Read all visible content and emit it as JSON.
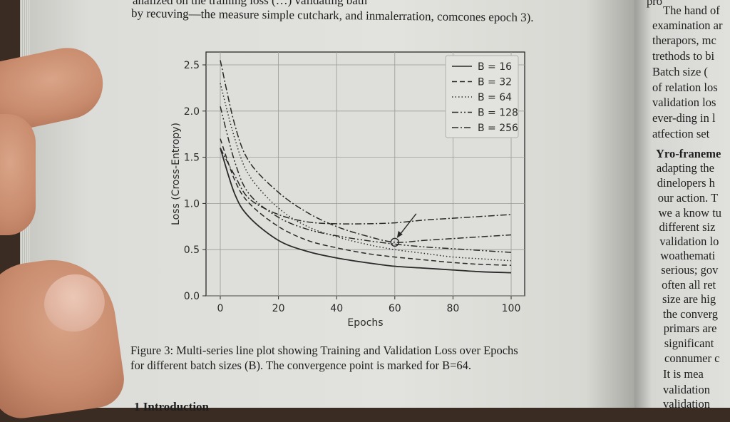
{
  "top_text": {
    "line1": "analized on the training loss (…) validating bath",
    "line2": "by recuving—the measure simple cutchark, and inmalerration, comcones epoch 3)."
  },
  "right_column": [
    "pro",
    "The hand of",
    "examination ar",
    "therapors, mc",
    "trethods to bi",
    "Batch size (",
    "of relation los",
    "validation los",
    "ever-ding in l",
    "atfection set",
    "Yro-franeme",
    "adapting the",
    "dinelopers h",
    "our action. T",
    "we a know tu",
    "different siz",
    "validation lo",
    "woathemati",
    "serious; gov",
    "often all ret",
    "size are hig",
    "the converg",
    "primars are",
    "significant",
    "connumer c",
    "It is mea",
    "validation",
    "validation"
  ],
  "caption": {
    "line1": "Figure 3: Multi-series line plot showing Training and Validation Loss over Epochs",
    "line2": "for different batch sizes (B). The convergence point is marked for B=64."
  },
  "section_heading": "1   Introduction",
  "chart_data": {
    "type": "line",
    "xlabel": "Epochs",
    "ylabel": "Loss (Cross-Entropy)",
    "xlim": [
      -4,
      104
    ],
    "ylim": [
      0,
      2.62
    ],
    "xticks": [
      "0",
      "20",
      "40",
      "60",
      "80",
      "100"
    ],
    "yticks": [
      "0.0",
      "0.5",
      "1.0",
      "1.5",
      "2.0",
      "2.5"
    ],
    "grid": true,
    "legend_position": "top-right",
    "x": [
      0,
      5,
      10,
      20,
      30,
      40,
      50,
      60,
      70,
      80,
      90,
      100
    ],
    "series": [
      {
        "name": "B = 16",
        "style": "solid",
        "values": [
          1.6,
          1.1,
          0.85,
          0.6,
          0.48,
          0.41,
          0.36,
          0.32,
          0.3,
          0.28,
          0.26,
          0.25
        ]
      },
      {
        "name": "B = 32",
        "style": "dashed",
        "values": [
          1.7,
          1.25,
          1.0,
          0.75,
          0.6,
          0.52,
          0.46,
          0.42,
          0.39,
          0.36,
          0.34,
          0.33
        ]
      },
      {
        "name": "B = 64",
        "style": "dotted",
        "values": [
          2.3,
          1.7,
          1.3,
          0.95,
          0.75,
          0.64,
          0.56,
          0.5,
          0.46,
          0.42,
          0.4,
          0.38
        ]
      },
      {
        "name": "B = 128",
        "style": "dashdotdot",
        "values": [
          2.05,
          1.45,
          1.1,
          0.85,
          0.72,
          0.65,
          0.6,
          0.56,
          0.53,
          0.51,
          0.49,
          0.47
        ]
      },
      {
        "name": "B = 256",
        "style": "dashdot",
        "values": [
          2.55,
          1.85,
          1.45,
          1.12,
          0.9,
          0.75,
          0.65,
          0.58,
          0.6,
          0.62,
          0.64,
          0.66
        ]
      },
      {
        "style": "dashdot",
        "values": [
          1.6,
          1.3,
          1.05,
          0.88,
          0.8,
          0.78,
          0.78,
          0.79,
          0.82,
          0.84,
          0.86,
          0.88
        ]
      }
    ],
    "annotation": {
      "label": "convergence point",
      "x": 60,
      "y": 0.58,
      "marker": "circle",
      "arrow": true
    },
    "line_color": "#2a2a2a"
  }
}
